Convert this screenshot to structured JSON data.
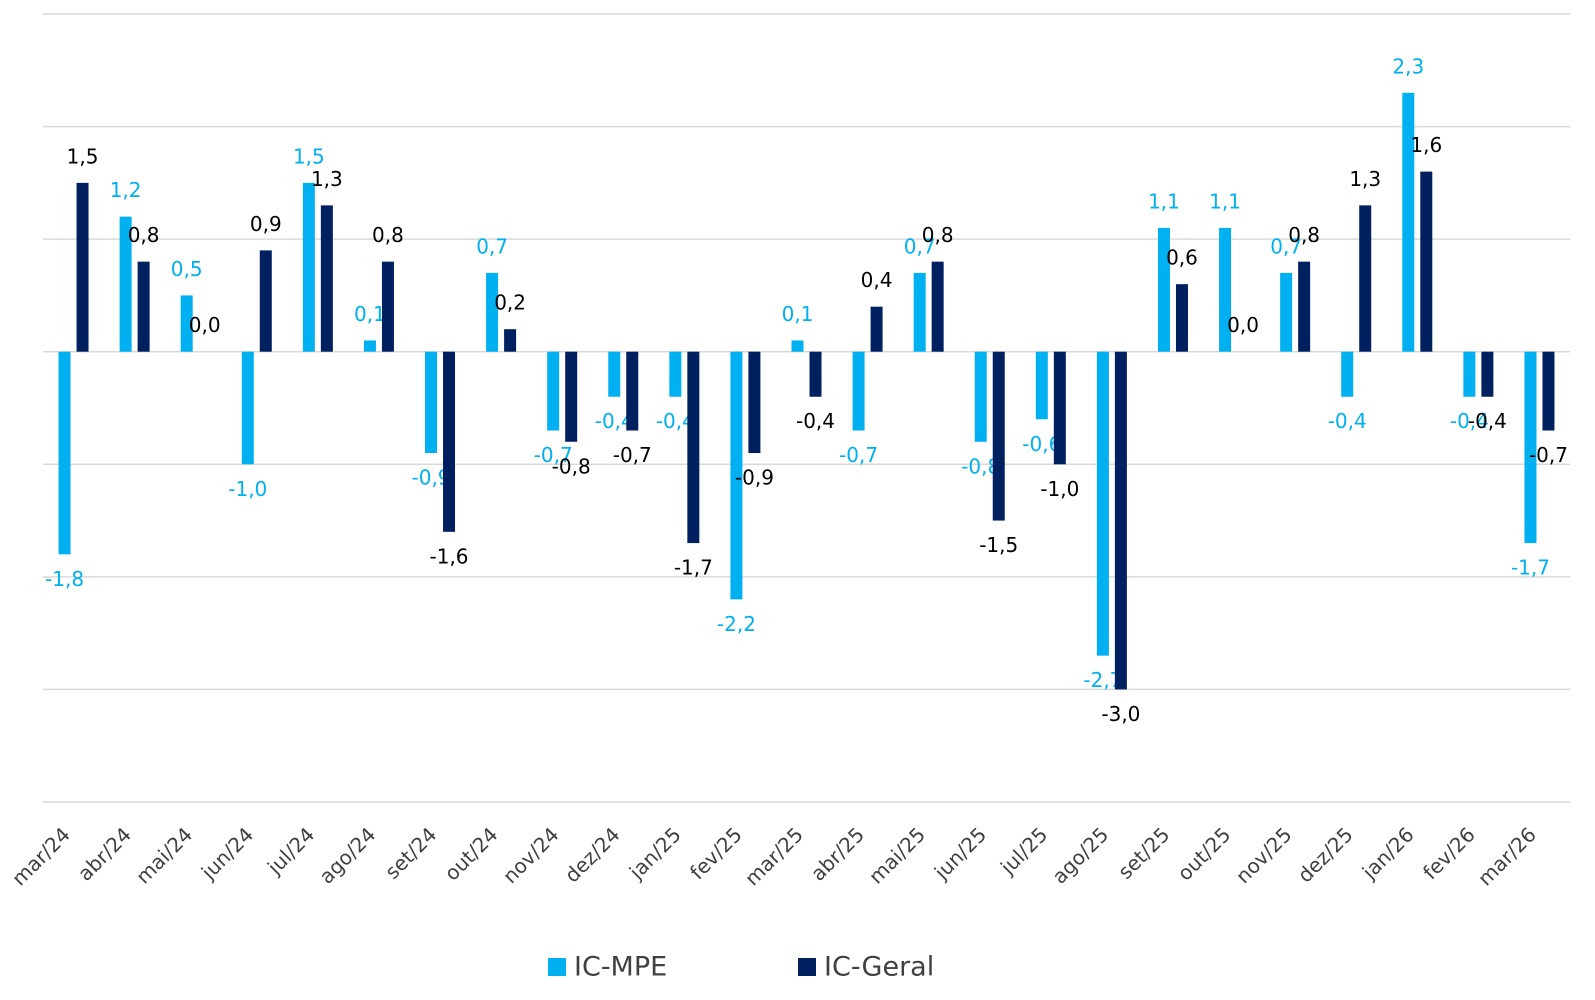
{
  "chart_data": {
    "type": "bar",
    "categories": [
      "mar/24",
      "abr/24",
      "mai/24",
      "jun/24",
      "jul/24",
      "ago/24",
      "set/24",
      "out/24",
      "nov/24",
      "dez/24",
      "jan/25",
      "fev/25",
      "mar/25",
      "abr/25",
      "mai/25",
      "jun/25",
      "jul/25",
      "ago/25",
      "set/25",
      "out/25",
      "nov/25",
      "dez/25",
      "jan/26",
      "fev/26",
      "mar/26"
    ],
    "series": [
      {
        "name": "IC-MPE",
        "color": "#00b0f0",
        "values": [
          -1.8,
          1.2,
          0.5,
          -1.0,
          1.5,
          0.1,
          -0.9,
          0.7,
          -0.7,
          -0.4,
          -0.4,
          -2.2,
          0.1,
          -0.7,
          0.7,
          -0.8,
          -0.6,
          -2.7,
          1.1,
          1.1,
          0.7,
          -0.4,
          2.3,
          -0.4,
          -1.7
        ],
        "value_labels": [
          "-1,8",
          "1,2",
          "0,5",
          "-1,0",
          "1,5",
          "0,1",
          "-0,9",
          "0,7",
          "-0,7",
          "-0,4",
          "-0,4",
          "-2,2",
          "0,1",
          "-0,7",
          "0,7",
          "-0,8",
          "-0,6",
          "-2,7",
          "1,1",
          "1,1",
          "0,7",
          "-0,4",
          "2,3",
          "-0,4",
          "-1,7"
        ]
      },
      {
        "name": "IC-Geral",
        "color": "#002060",
        "values": [
          1.5,
          0.8,
          0.0,
          0.9,
          1.3,
          0.8,
          -1.6,
          0.2,
          -0.8,
          -0.7,
          -1.7,
          -0.9,
          -0.4,
          0.4,
          0.8,
          -1.5,
          -1.0,
          -3.0,
          0.6,
          0.0,
          0.8,
          1.3,
          1.6,
          -0.4,
          -0.7
        ],
        "value_labels": [
          "1,5",
          "0,8",
          "0,0",
          "0,9",
          "1,3",
          "0,8",
          "-1,6",
          "0,2",
          "-0,8",
          "-0,7",
          "-1,7",
          "-0,9",
          "-0,4",
          "0,4",
          "0,8",
          "-1,5",
          "-1,0",
          "-3,0",
          "0,6",
          "0,0",
          "0,8",
          "1,3",
          "1,6",
          "-0,4",
          "-0,7"
        ]
      }
    ],
    "ylim": [
      -4,
      3
    ],
    "yticks": [
      -4,
      -3,
      -2,
      -1,
      0,
      1,
      2,
      3
    ],
    "grid": true
  }
}
